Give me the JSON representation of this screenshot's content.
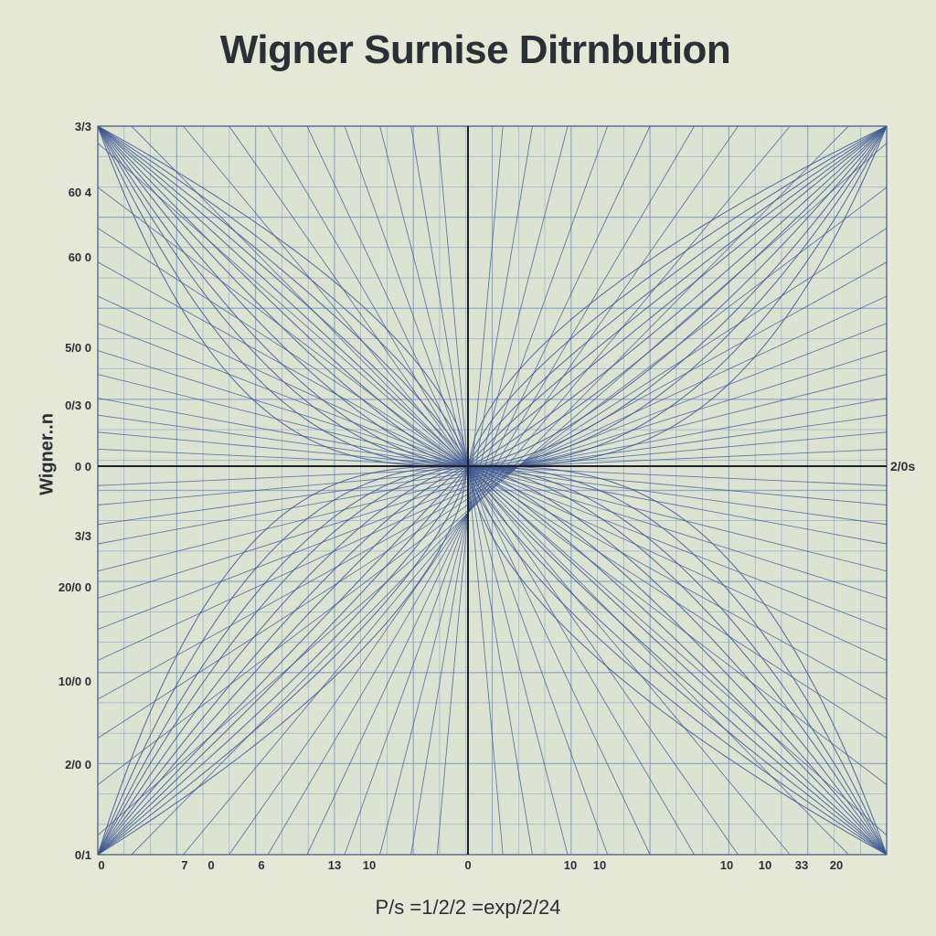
{
  "chart_data": {
    "type": "line",
    "title": "Wigner Surnise Ditrnbution",
    "ylabel": "Wigner..n",
    "xlabel": "P/s =1/2/2 =exp/2/24",
    "x_axis_end_label": "2/0s",
    "y_tick_labels": [
      "3/3",
      "60 4",
      "60 0",
      "5/0 0",
      "0/3 0",
      "0 0",
      "3/3",
      "20/0 0",
      "10/0 0",
      "2/0 0",
      "0/1"
    ],
    "x_tick_labels": [
      "0",
      "7",
      "0",
      "6",
      "13",
      "10",
      "0",
      "10",
      "10",
      "10",
      "10",
      "33",
      "20"
    ],
    "xlim": [
      -1,
      1
    ],
    "ylim": [
      -1,
      1
    ],
    "grid": true,
    "colors": {
      "background": "#e5e8d6",
      "grid": "#7f97c4",
      "curves": "#3c558f",
      "axes": "#1e2228"
    },
    "series": [
      {
        "shape": "ray",
        "slopes": [
          0.05,
          0.1,
          0.15,
          0.2,
          0.27,
          0.34,
          0.42,
          0.5,
          0.6,
          0.7,
          0.82,
          0.95,
          1.1,
          1.3,
          1.55,
          1.85,
          2.3,
          3.0,
          4.2,
          6.5,
          12
        ]
      },
      {
        "shape": "curve",
        "exponents": [
          0.6,
          0.7,
          0.8,
          0.9,
          1.0,
          1.15,
          1.3,
          1.5,
          1.75,
          2.0,
          2.4,
          3.0
        ]
      }
    ]
  }
}
